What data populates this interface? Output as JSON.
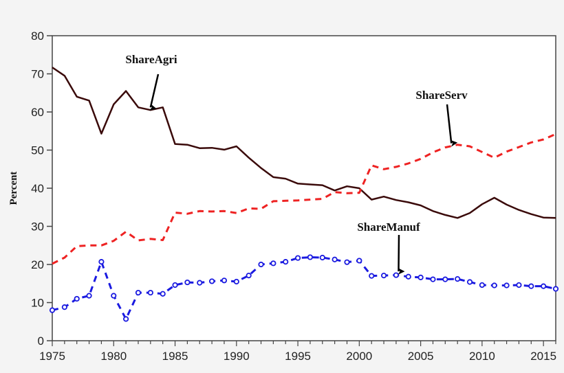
{
  "chart_data": {
    "type": "line",
    "title": "",
    "xlabel": "",
    "ylabel": "Percent",
    "xlim": [
      1975,
      2016
    ],
    "ylim": [
      0,
      80
    ],
    "yticks": [
      0,
      10,
      20,
      30,
      40,
      50,
      60,
      70,
      80
    ],
    "xticks": [
      1975,
      1980,
      1985,
      1990,
      1995,
      2000,
      2005,
      2010,
      2015
    ],
    "grid": false,
    "x": [
      1975,
      1976,
      1977,
      1978,
      1979,
      1980,
      1981,
      1982,
      1983,
      1984,
      1985,
      1986,
      1987,
      1988,
      1989,
      1990,
      1991,
      1992,
      1993,
      1994,
      1995,
      1996,
      1997,
      1998,
      1999,
      2000,
      2001,
      2002,
      2003,
      2004,
      2005,
      2006,
      2007,
      2008,
      2009,
      2010,
      2011,
      2012,
      2013,
      2014,
      2015,
      2016
    ],
    "series": [
      {
        "name": "ShareAgri",
        "color": "#3a0a0a",
        "style": "solid",
        "values": [
          71.7,
          69.5,
          64,
          63,
          54.3,
          62,
          65.5,
          61.2,
          60.5,
          61.2,
          51.6,
          51.4,
          50.5,
          50.6,
          50.1,
          51,
          48,
          45.3,
          42.9,
          42.5,
          41.2,
          41,
          40.8,
          39.4,
          40.5,
          40,
          37,
          37.8,
          36.9,
          36.3,
          35.5,
          34,
          33,
          32.2,
          33.5,
          35.8,
          37.5,
          35.7,
          34.3,
          33.2,
          32.3,
          32.2
        ]
      },
      {
        "name": "ShareServ",
        "color": "#ee2222",
        "style": "dashed",
        "values": [
          20.2,
          21.8,
          24.8,
          25,
          25,
          26.2,
          28.6,
          26.3,
          26.7,
          26.4,
          33.6,
          33.3,
          34,
          33.9,
          34,
          33.5,
          34.7,
          34.6,
          36.6,
          36.7,
          36.8,
          37,
          37.2,
          39,
          38.7,
          38.8,
          46,
          45,
          45.6,
          46.5,
          47.7,
          49.4,
          50.7,
          51.4,
          51,
          49.5,
          48,
          49.6,
          50.8,
          52,
          52.8,
          54.2
        ]
      },
      {
        "name": "ShareManuf",
        "color": "#1a1ae0",
        "style": "dashed-circles",
        "values": [
          8,
          8.8,
          11,
          11.8,
          20.7,
          11.8,
          5.7,
          12.6,
          12.6,
          12.3,
          14.6,
          15.3,
          15.2,
          15.6,
          15.8,
          15.5,
          17.1,
          20,
          20.3,
          20.7,
          21.7,
          21.9,
          21.8,
          21.3,
          20.6,
          21,
          17,
          17.1,
          17.2,
          16.8,
          16.6,
          16.1,
          16.1,
          16.2,
          15.4,
          14.6,
          14.5,
          14.5,
          14.6,
          14.3,
          14.3,
          13.6
        ]
      }
    ],
    "annotations": [
      {
        "text": "ShareAgri",
        "points_to_year": 1983,
        "series": "ShareAgri"
      },
      {
        "text": "ShareServ",
        "points_to_year": 2007.5,
        "series": "ShareServ"
      },
      {
        "text": "ShareManuf",
        "points_to_year": 2003.2,
        "series": "ShareManuf"
      }
    ]
  }
}
